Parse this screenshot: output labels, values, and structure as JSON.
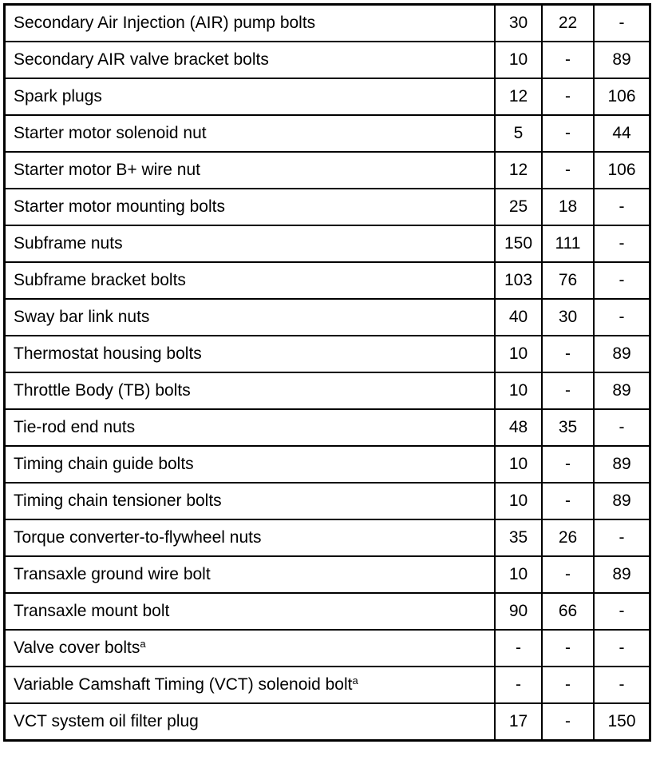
{
  "rows": [
    {
      "desc": "Secondary Air Injection (AIR) pump bolts",
      "sup": "",
      "nm": "30",
      "lbft": "22",
      "lbin": "-"
    },
    {
      "desc": "Secondary AIR valve bracket bolts",
      "sup": "",
      "nm": "10",
      "lbft": "-",
      "lbin": "89"
    },
    {
      "desc": "Spark plugs",
      "sup": "",
      "nm": "12",
      "lbft": "-",
      "lbin": "106"
    },
    {
      "desc": "Starter motor solenoid nut",
      "sup": "",
      "nm": "5",
      "lbft": "-",
      "lbin": "44"
    },
    {
      "desc": "Starter motor B+ wire nut",
      "sup": "",
      "nm": "12",
      "lbft": "-",
      "lbin": "106"
    },
    {
      "desc": "Starter motor mounting bolts",
      "sup": "",
      "nm": "25",
      "lbft": "18",
      "lbin": "-"
    },
    {
      "desc": "Subframe nuts",
      "sup": "",
      "nm": "150",
      "lbft": "111",
      "lbin": "-"
    },
    {
      "desc": "Subframe bracket bolts",
      "sup": "",
      "nm": "103",
      "lbft": "76",
      "lbin": "-"
    },
    {
      "desc": "Sway bar link nuts",
      "sup": "",
      "nm": "40",
      "lbft": "30",
      "lbin": "-"
    },
    {
      "desc": "Thermostat housing bolts",
      "sup": "",
      "nm": "10",
      "lbft": "-",
      "lbin": "89"
    },
    {
      "desc": "Throttle Body (TB) bolts",
      "sup": "",
      "nm": "10",
      "lbft": "-",
      "lbin": "89"
    },
    {
      "desc": "Tie-rod end nuts",
      "sup": "",
      "nm": "48",
      "lbft": "35",
      "lbin": "-"
    },
    {
      "desc": "Timing chain guide bolts",
      "sup": "",
      "nm": "10",
      "lbft": "-",
      "lbin": "89"
    },
    {
      "desc": "Timing chain tensioner bolts",
      "sup": "",
      "nm": "10",
      "lbft": "-",
      "lbin": "89"
    },
    {
      "desc": "Torque converter-to-flywheel nuts",
      "sup": "",
      "nm": "35",
      "lbft": "26",
      "lbin": "-"
    },
    {
      "desc": "Transaxle ground wire bolt",
      "sup": "",
      "nm": "10",
      "lbft": "-",
      "lbin": "89"
    },
    {
      "desc": "Transaxle mount bolt",
      "sup": "",
      "nm": "90",
      "lbft": "66",
      "lbin": "-"
    },
    {
      "desc": "Valve cover bolts",
      "sup": "a",
      "nm": "-",
      "lbft": "-",
      "lbin": "-"
    },
    {
      "desc": "Variable Camshaft Timing (VCT) solenoid bolt",
      "sup": "a",
      "nm": "-",
      "lbft": "-",
      "lbin": "-"
    },
    {
      "desc": "VCT system oil filter plug",
      "sup": "",
      "nm": "17",
      "lbft": "-",
      "lbin": "150"
    }
  ]
}
